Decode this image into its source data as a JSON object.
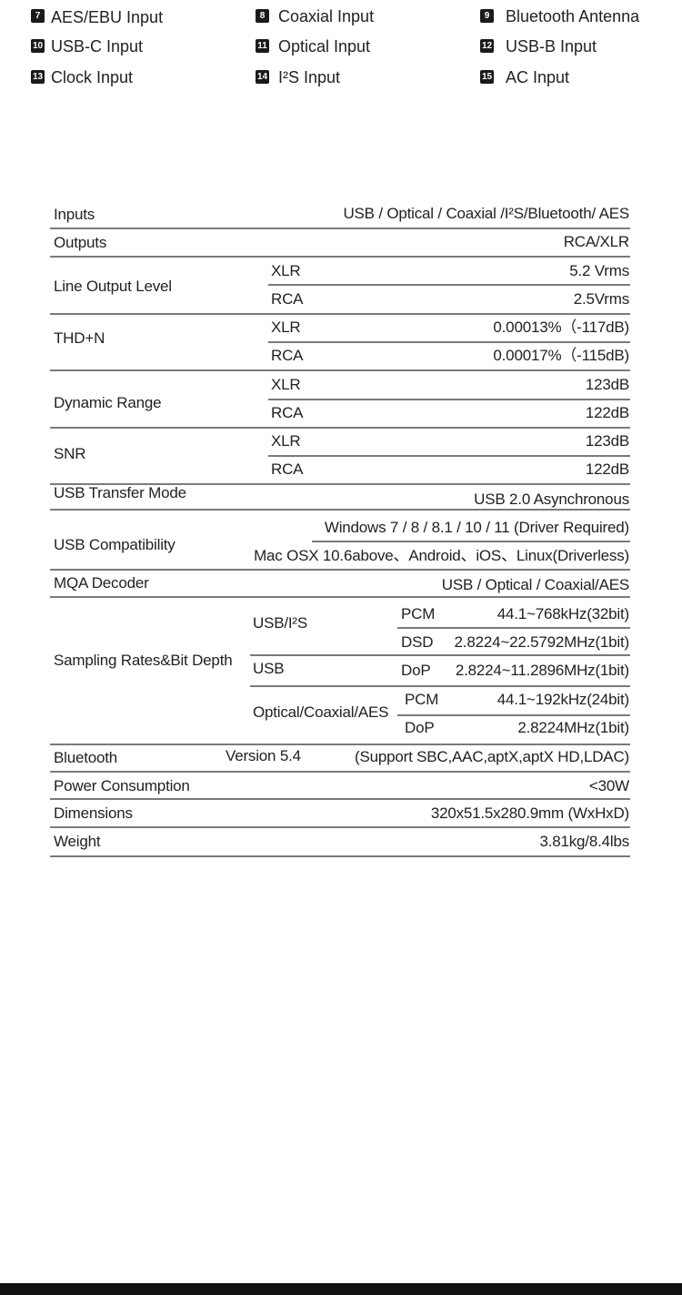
{
  "legend": [
    {
      "num": "7",
      "label": "AES/EBU Input"
    },
    {
      "num": "8",
      "label": "Coaxial Input"
    },
    {
      "num": "9",
      "label": "Bluetooth Antenna"
    },
    {
      "num": "10",
      "label": "USB-C Input"
    },
    {
      "num": "11",
      "label": "Optical Input"
    },
    {
      "num": "12",
      "label": "USB-B Input"
    },
    {
      "num": "13",
      "label": "Clock Input"
    },
    {
      "num": "14",
      "label": "I²S Input"
    },
    {
      "num": "15",
      "label": "AC  Input"
    }
  ],
  "specs": {
    "inputs": {
      "label": "Inputs",
      "value": "USB / Optical / Coaxial /I²S/Bluetooth/ AES"
    },
    "outputs": {
      "label": "Outputs",
      "value": "RCA/XLR"
    },
    "line_output": {
      "label": "Line Output Level",
      "xlr_label": "XLR",
      "xlr": "5.2 Vrms",
      "rca_label": "RCA",
      "rca": "2.5Vrms"
    },
    "thd": {
      "label": "THD+N",
      "xlr_label": "XLR",
      "xlr": "0.00013%（-117dB)",
      "rca_label": "RCA",
      "rca": "0.00017%（-115dB)"
    },
    "dynamic_range": {
      "label": "Dynamic Range",
      "xlr_label": "XLR",
      "xlr": "123dB",
      "rca_label": "RCA",
      "rca": "122dB"
    },
    "snr": {
      "label": "SNR",
      "xlr_label": "XLR",
      "xlr": "123dB",
      "rca_label": "RCA",
      "rca": "122dB"
    },
    "usb_transfer": {
      "label": "USB Transfer Mode",
      "value": "USB 2.0 Asynchronous"
    },
    "usb_compat": {
      "label": "USB Compatibility",
      "windows": "Windows 7 / 8 / 8.1 / 10 / 11 (Driver Required)",
      "other": "Mac OSX 10.6above、Android、iOS、Linux(Driverless)"
    },
    "mqa": {
      "label": "MQA Decoder",
      "value": "USB / Optical / Coaxial/AES"
    },
    "sampling": {
      "label": "Sampling Rates&Bit Depth",
      "usb_i2s": "USB/I²S",
      "usb": "USB",
      "optical": "Optical/Coaxial/AES",
      "rows": [
        {
          "fmt": "PCM",
          "value": "44.1~768kHz(32bit)"
        },
        {
          "fmt": "DSD",
          "value": "2.8224~22.5792MHz(1bit)"
        },
        {
          "fmt": "DoP",
          "value": "2.8224~11.2896MHz(1bit)"
        },
        {
          "fmt": "PCM",
          "value": "44.1~192kHz(24bit)"
        },
        {
          "fmt": "DoP",
          "value": "2.8224MHz(1bit)"
        }
      ]
    },
    "bluetooth": {
      "label": "Bluetooth",
      "version": "Version 5.4",
      "value": "(Support SBC,AAC,aptX,aptX HD,LDAC)"
    },
    "power": {
      "label": "Power Consumption",
      "value": "<30W"
    },
    "dimensions": {
      "label": "Dimensions",
      "value": "320x51.5x280.9mm (WxHxD)"
    },
    "weight": {
      "label": "Weight",
      "value": "3.81kg/8.4lbs"
    }
  }
}
